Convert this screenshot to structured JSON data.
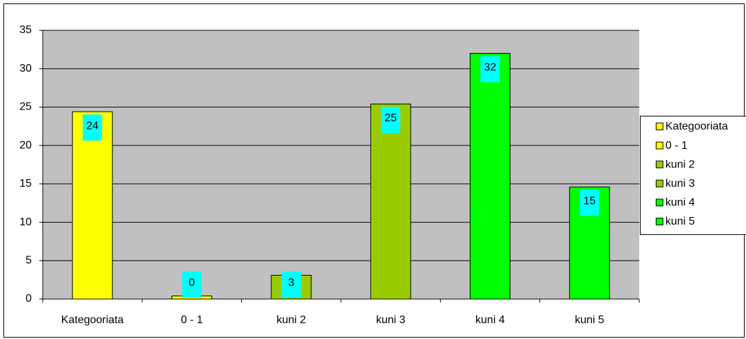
{
  "chart_data": {
    "type": "bar",
    "categories": [
      "Kategooriata",
      "0 - 1",
      "kuni 2",
      "kuni 3",
      "kuni 4",
      "kuni 5"
    ],
    "values": [
      24.4,
      0.4,
      3.1,
      25.4,
      32,
      14.6
    ],
    "value_labels": [
      "24",
      "0",
      "3",
      "25",
      "32",
      "15"
    ],
    "colors": [
      "#ffff00",
      "#ffff00",
      "#99cc00",
      "#99cc00",
      "#00ff00",
      "#00ff00"
    ],
    "label_color": "#00ffff",
    "plot_background": "#c0c0c0",
    "ylim": [
      0,
      35
    ],
    "yticks": [
      0,
      5,
      10,
      15,
      20,
      25,
      30,
      35
    ],
    "grid": true,
    "legend": "right"
  }
}
